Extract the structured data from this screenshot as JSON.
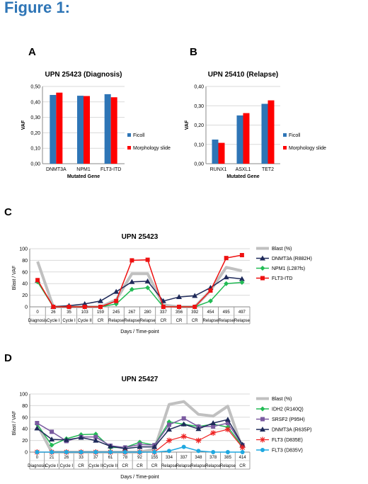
{
  "figure_title": "Figure 1:",
  "panel_letters": [
    "A",
    "B",
    "C",
    "D"
  ],
  "colors": {
    "title": "#2e75b6",
    "ficoll": "#2e75b6",
    "morphology": "#ff0000",
    "blast": "#c0c0c0",
    "dnmt3a": "#1f2a5a",
    "npm1": "#22bb55",
    "flt3_itd": "#ee1111",
    "idh2": "#22bb55",
    "srsf2": "#7a5aa0",
    "flt3_d835e": "#ee2222",
    "flt3_d835v": "#1fa8e0"
  },
  "chart_data": [
    {
      "id": "A",
      "type": "bar",
      "title": "UPN 25423 (Diagnosis)",
      "xlabel": "Mutated Gene",
      "ylabel": "VAF",
      "categories": [
        "DNMT3A",
        "NPM1",
        "FLT3-ITD"
      ],
      "series": [
        {
          "name": "Ficoll",
          "values": [
            0.445,
            0.44,
            0.45
          ]
        },
        {
          "name": "Morphology slide",
          "values": [
            0.46,
            0.438,
            0.43
          ]
        }
      ],
      "ylim": [
        0,
        0.5
      ],
      "yticks": [
        "0,00",
        "0,10",
        "0,20",
        "0,30",
        "0,40",
        "0,50"
      ],
      "grid": true,
      "legend": "right"
    },
    {
      "id": "B",
      "type": "bar",
      "title": "UPN 25410 (Relapse)",
      "xlabel": "Mutated Gene",
      "ylabel": "VAF",
      "categories": [
        "RUNX1",
        "ASXL1",
        "TET2"
      ],
      "series": [
        {
          "name": "Ficoll",
          "values": [
            0.125,
            0.25,
            0.31
          ]
        },
        {
          "name": "Morphology slide",
          "values": [
            0.108,
            0.262,
            0.328
          ]
        }
      ],
      "ylim": [
        0,
        0.4
      ],
      "yticks": [
        "0,00",
        "0,10",
        "0,20",
        "0,30",
        "0,40"
      ],
      "grid": true,
      "legend": "right"
    },
    {
      "id": "C",
      "type": "line",
      "title": "UPN 25423",
      "xlabel": "Days / Time-point",
      "ylabel": "Blast / VAF",
      "days": [
        "0",
        "26",
        "35",
        "103",
        "159",
        "245",
        "267",
        "280",
        "337",
        "356",
        "392",
        "454",
        "495",
        "497"
      ],
      "timepoints": [
        "Diagnosis",
        "Cycle I",
        "Cycle I",
        "Cycle II",
        "CR",
        "Relapse",
        "Relapse",
        "Relapse",
        "CR",
        "CR",
        "CR",
        "Relapse",
        "Relapse",
        "Relapse"
      ],
      "ylim": [
        0,
        100
      ],
      "yticks": [
        "0",
        "20",
        "40",
        "60",
        "80",
        "100"
      ],
      "grid": true,
      "legend": "right",
      "series": [
        {
          "name": "Blast (%)",
          "values": [
            78,
            0,
            0,
            0,
            0,
            12,
            57,
            57,
            3,
            0,
            0,
            28,
            68,
            62
          ]
        },
        {
          "name": "DNMT3A (R882H)",
          "values": [
            45,
            0,
            2,
            5,
            10,
            26,
            43,
            44,
            10,
            17,
            19,
            33,
            51,
            48
          ]
        },
        {
          "name": "NPM1 (L287fs)",
          "values": [
            43,
            0,
            0,
            0,
            0,
            5,
            30,
            33,
            0,
            0,
            0,
            10,
            40,
            42
          ]
        },
        {
          "name": "FLT3-ITD",
          "values": [
            46,
            0,
            0,
            0,
            0,
            10,
            80,
            81,
            0,
            0,
            0,
            28,
            84,
            89
          ]
        }
      ]
    },
    {
      "id": "D",
      "type": "line",
      "title": "UPN 25427",
      "xlabel": "Days / Time-point",
      "ylabel": "Blast / VAF",
      "days": [
        "0",
        "21",
        "26",
        "33",
        "37",
        "61",
        "78",
        "92",
        "155",
        "334",
        "337",
        "348",
        "378",
        "385",
        "414"
      ],
      "timepoints": [
        "Diagnosis",
        "Cycle I",
        "Cycle I",
        "CR",
        "Cycle II",
        "Cycle II",
        "CR",
        "CR",
        "CR",
        "Relapse",
        "Relapse",
        "Relapse",
        "Relapse",
        "Relapse",
        "CR"
      ],
      "ylim": [
        0,
        100
      ],
      "yticks": [
        "0",
        "20",
        "40",
        "60",
        "80",
        "100"
      ],
      "grid": true,
      "legend": "right",
      "series": [
        {
          "name": "Blast (%)",
          "values": [
            48,
            0,
            0,
            0,
            0,
            0,
            0,
            0,
            5,
            82,
            87,
            65,
            62,
            79,
            5
          ]
        },
        {
          "name": "IDH2 (R140Q)",
          "values": [
            48,
            12,
            23,
            30,
            31,
            8,
            8,
            17,
            12,
            52,
            48,
            44,
            48,
            43,
            10
          ]
        },
        {
          "name": "SRSF2 (P95H)",
          "values": [
            50,
            35,
            19,
            26,
            26,
            11,
            8,
            13,
            12,
            47,
            58,
            44,
            44,
            50,
            12
          ]
        },
        {
          "name": "DNMT3A (R635P)",
          "values": [
            41,
            22,
            21,
            25,
            20,
            10,
            6,
            9,
            9,
            39,
            48,
            40,
            50,
            56,
            13
          ]
        },
        {
          "name": "FLT3 (D835E)",
          "values": [
            0,
            0,
            0,
            0,
            0,
            0,
            0,
            0,
            0,
            20,
            27,
            20,
            33,
            39,
            8
          ]
        },
        {
          "name": "FLT3 (D835V)",
          "values": [
            0,
            0,
            0,
            0,
            0,
            0,
            0,
            0,
            0,
            2,
            9,
            2,
            0,
            0,
            0
          ]
        }
      ]
    }
  ]
}
